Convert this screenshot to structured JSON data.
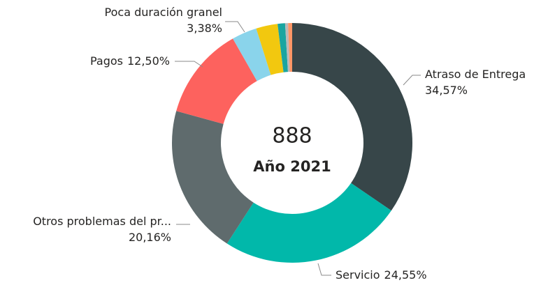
{
  "chart_data": {
    "type": "donut",
    "categories": [
      "Atraso de Entrega",
      "Servicio",
      "Otros problemas del pr...",
      "Pagos",
      "Poca duración granel",
      null,
      null,
      null,
      null
    ],
    "values": [
      34.57,
      24.55,
      20.16,
      12.5,
      3.38,
      2.9,
      1.0,
      0.4,
      0.54
    ],
    "value_labels": [
      "34,57%",
      "24,55%",
      "20,16%",
      "12,50%",
      "3,38%",
      null,
      null,
      null,
      null
    ],
    "colors": [
      "#374649",
      "#01b8aa",
      "#5f6b6d",
      "#fd625e",
      "#8ad4eb",
      "#f2c80f",
      "#1aa5a0",
      "#b9b9b9",
      "#fe9666"
    ],
    "center_value": "888",
    "center_label": "Año 2021"
  }
}
